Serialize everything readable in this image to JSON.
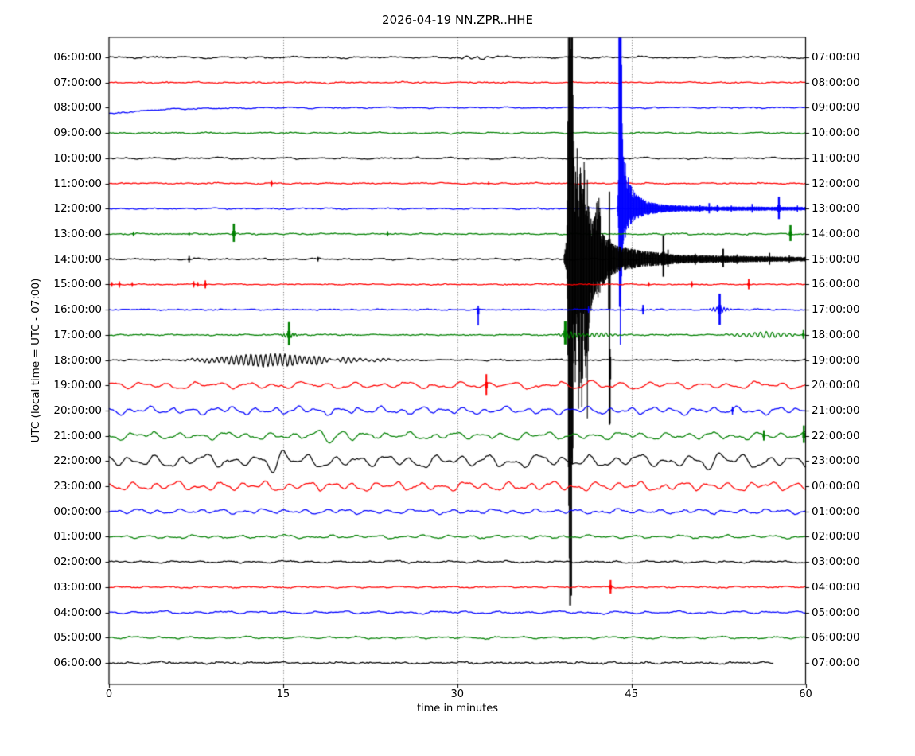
{
  "title": "2026-04-19 NN.ZPR..HHE",
  "axis": {
    "ylabel": "UTC (local time = UTC - 07:00)",
    "xlabel": "time in minutes",
    "xtick_labels": [
      "0",
      "15",
      "30",
      "45",
      "60"
    ]
  },
  "chart_data": {
    "type": "line",
    "kind": "seismogram-dayplot",
    "title": "2026-04-19 NN.ZPR..HHE",
    "date": "2026-04-19",
    "station_id": "NN.ZPR..HHE",
    "xlabel": "time in minutes",
    "ylabel": "UTC (local time = UTC - 07:00)",
    "x_range_minutes": [
      0,
      60
    ],
    "xticks": [
      0,
      15,
      30,
      45,
      60
    ],
    "grid_minutes": [
      15,
      30,
      45
    ],
    "grid_style": "dotted",
    "utc_offset_note": "right axis labels = left UTC label + 1 hour",
    "colors": {
      "black": "#000000",
      "red": "#ff0000",
      "blue": "#0000ff",
      "green": "#008000"
    },
    "rows": [
      {
        "utc": "06:00:00",
        "local": "07:00:00",
        "color": "black",
        "hf": 1.1,
        "wave": 1.1,
        "wl": 3.0,
        "end": 60,
        "features": [
          {
            "t": "burst",
            "m": 31.5,
            "a": 1.6,
            "s": 1.5,
            "p": 0.9
          }
        ]
      },
      {
        "utc": "07:00:00",
        "local": "08:00:00",
        "color": "red",
        "hf": 0.9,
        "wave": 0.7,
        "wl": 2.5,
        "end": 60,
        "features": []
      },
      {
        "utc": "08:00:00",
        "local": "09:00:00",
        "color": "blue",
        "hf": 0.8,
        "wave": 0.7,
        "wl": 2.6,
        "end": 60,
        "features": [
          {
            "t": "decay",
            "a": 8,
            "tau": 4.0
          }
        ]
      },
      {
        "utc": "09:00:00",
        "local": "10:00:00",
        "color": "green",
        "hf": 0.9,
        "wave": 0.8,
        "wl": 2.5,
        "end": 60,
        "features": []
      },
      {
        "utc": "10:00:00",
        "local": "11:00:00",
        "color": "black",
        "hf": 1.0,
        "wave": 1.0,
        "wl": 2.8,
        "end": 60,
        "features": []
      },
      {
        "utc": "11:00:00",
        "local": "12:00:00",
        "color": "red",
        "hf": 0.9,
        "wave": 0.7,
        "wl": 2.5,
        "end": 60,
        "features": [
          {
            "t": "spike",
            "m": 14.0,
            "u": 4,
            "d": 4,
            "w": 1.7
          },
          {
            "t": "spike",
            "m": 32.7,
            "u": 2.5,
            "d": 2.5,
            "w": 1.2
          }
        ]
      },
      {
        "utc": "12:00:00",
        "local": "13:00:00",
        "color": "blue",
        "hf": 0.9,
        "wave": 0.7,
        "wl": 2.5,
        "end": 60,
        "features": [
          {
            "t": "event",
            "env": [
              [
                43.8,
                6,
                5
              ],
              [
                43.88,
                40,
                25
              ],
              [
                43.93,
                400,
                90
              ],
              [
                43.99,
                400,
                160
              ],
              [
                44.04,
                400,
                195
              ],
              [
                44.1,
                300,
                130
              ],
              [
                44.2,
                120,
                70
              ],
              [
                44.35,
                70,
                45
              ],
              [
                44.6,
                45,
                28
              ],
              [
                44.9,
                30,
                20
              ],
              [
                45.3,
                20,
                14
              ],
              [
                45.9,
                13,
                10
              ],
              [
                46.6,
                8,
                7
              ],
              [
                47.5,
                5.5,
                5
              ],
              [
                49,
                4,
                3.5
              ],
              [
                52,
                2.6,
                2.6
              ],
              [
                60,
                2.2,
                2.2
              ]
            ]
          },
          {
            "t": "spike",
            "m": 50.9,
            "u": 5,
            "d": 4,
            "w": 1.5
          },
          {
            "t": "spike",
            "m": 51.7,
            "u": 7,
            "d": 6,
            "w": 1.8
          },
          {
            "t": "spike",
            "m": 52.4,
            "u": 5,
            "d": 4,
            "w": 1.5
          },
          {
            "t": "spike",
            "m": 53.6,
            "u": 4,
            "d": 4,
            "w": 1.4
          },
          {
            "t": "spike",
            "m": 55.4,
            "u": 6,
            "d": 5,
            "w": 1.6
          },
          {
            "t": "spike",
            "m": 57.7,
            "u": 15,
            "d": 13,
            "w": 2.4
          },
          {
            "t": "spike",
            "m": 59.3,
            "u": 4,
            "d": 4,
            "w": 1.4
          }
        ]
      },
      {
        "utc": "13:00:00",
        "local": "14:00:00",
        "color": "green",
        "hf": 1.0,
        "wave": 0.7,
        "wl": 2.2,
        "end": 60,
        "features": [
          {
            "t": "spike",
            "m": 2.1,
            "u": 3,
            "d": 3,
            "w": 1.4
          },
          {
            "t": "spike",
            "m": 6.9,
            "u": 2.5,
            "d": 2.5,
            "w": 1.3
          },
          {
            "t": "spike",
            "m": 10.75,
            "u": 13,
            "d": 10,
            "w": 2.6
          },
          {
            "t": "spike",
            "m": 24.0,
            "u": 3.5,
            "d": 3,
            "w": 1.5
          },
          {
            "t": "spike",
            "m": 58.7,
            "u": 11,
            "d": 9,
            "w": 2.6
          }
        ]
      },
      {
        "utc": "14:00:00",
        "local": "15:00:00",
        "color": "black",
        "hf": 1.1,
        "wave": 0.9,
        "wl": 2.6,
        "end": 60,
        "features": [
          {
            "t": "spike",
            "m": 6.9,
            "u": 4,
            "d": 4,
            "w": 1.8
          },
          {
            "t": "spike",
            "m": 18.0,
            "u": 3,
            "d": 3,
            "w": 1.4
          },
          {
            "t": "event",
            "env": [
              [
                39.2,
                6,
                5
              ],
              [
                39.4,
                25,
                18
              ],
              [
                39.5,
                120,
                70
              ],
              [
                39.56,
                400,
                300
              ],
              [
                39.62,
                400,
                380
              ],
              [
                39.68,
                400,
                435
              ],
              [
                39.83,
                400,
                435
              ],
              [
                39.9,
                400,
                360
              ],
              [
                39.95,
                400,
                300
              ],
              [
                40.0,
                170,
                120
              ],
              [
                40.15,
                90,
                160
              ],
              [
                40.3,
                150,
                80
              ],
              [
                40.45,
                70,
                200
              ],
              [
                40.6,
                120,
                120
              ],
              [
                40.75,
                90,
                265
              ],
              [
                40.9,
                140,
                90
              ],
              [
                41.05,
                70,
                150
              ],
              [
                41.2,
                100,
                200
              ],
              [
                41.4,
                60,
                80
              ],
              [
                41.6,
                45,
                55
              ],
              [
                41.9,
                55,
                40
              ],
              [
                42.15,
                95,
                50
              ],
              [
                42.4,
                35,
                35
              ],
              [
                42.7,
                28,
                30
              ],
              [
                43.0,
                24,
                24
              ],
              [
                43.3,
                20,
                20
              ],
              [
                43.7,
                17,
                17
              ],
              [
                44.2,
                15,
                14
              ],
              [
                45,
                13,
                12
              ],
              [
                46,
                10,
                9
              ],
              [
                47.5,
                8,
                8
              ],
              [
                48.5,
                6,
                6
              ],
              [
                50,
                5,
                5
              ],
              [
                52,
                4.5,
                4.5
              ],
              [
                54,
                4,
                4
              ],
              [
                56,
                3.5,
                3.5
              ],
              [
                58,
                3,
                3
              ],
              [
                60,
                2.8,
                2.8
              ]
            ]
          },
          {
            "t": "spike",
            "m": 43.1,
            "u": 85,
            "d": 208,
            "w": 1.8
          },
          {
            "t": "spike",
            "m": 47.75,
            "u": 30,
            "d": 22,
            "w": 2.2
          },
          {
            "t": "spike",
            "m": 48.15,
            "u": 12,
            "d": 10,
            "w": 1.6
          },
          {
            "t": "spike",
            "m": 50.5,
            "u": 7,
            "d": 7,
            "w": 1.5
          },
          {
            "t": "spike",
            "m": 52.9,
            "u": 13,
            "d": 10,
            "w": 2.0
          },
          {
            "t": "spike",
            "m": 54.1,
            "u": 6,
            "d": 6,
            "w": 1.5
          },
          {
            "t": "spike",
            "m": 56.9,
            "u": 8,
            "d": 7,
            "w": 1.6
          },
          {
            "t": "spike",
            "m": 58.6,
            "u": 5,
            "d": 5,
            "w": 1.4
          }
        ]
      },
      {
        "utc": "15:00:00",
        "local": "16:00:00",
        "color": "red",
        "hf": 0.85,
        "wave": 0.5,
        "wl": 2.0,
        "end": 60,
        "features": [
          {
            "t": "spike",
            "m": 0.25,
            "u": 3,
            "d": 3,
            "w": 1.3
          },
          {
            "t": "spike",
            "m": 0.9,
            "u": 4,
            "d": 4,
            "w": 1.5
          },
          {
            "t": "spike",
            "m": 2.0,
            "u": 3,
            "d": 3,
            "w": 1.3
          },
          {
            "t": "spike",
            "m": 7.3,
            "u": 4,
            "d": 4,
            "w": 1.5
          },
          {
            "t": "spike",
            "m": 7.65,
            "u": 3,
            "d": 3,
            "w": 1.3
          },
          {
            "t": "spike",
            "m": 8.3,
            "u": 5,
            "d": 5,
            "w": 1.8
          },
          {
            "t": "spike",
            "m": 46.5,
            "u": 3,
            "d": 3,
            "w": 1.3
          },
          {
            "t": "spike",
            "m": 50.2,
            "u": 4,
            "d": 4,
            "w": 1.5
          },
          {
            "t": "spike",
            "m": 55.1,
            "u": 7,
            "d": 6,
            "w": 1.8
          }
        ]
      },
      {
        "utc": "16:00:00",
        "local": "17:00:00",
        "color": "blue",
        "hf": 0.85,
        "wave": 0.6,
        "wl": 2.2,
        "end": 60,
        "features": [
          {
            "t": "spike",
            "m": 31.8,
            "u": 5,
            "d": 20,
            "w": 1.6
          },
          {
            "t": "spike",
            "m": 41.3,
            "u": 4,
            "d": 4,
            "w": 1.4
          },
          {
            "t": "spike",
            "m": 46.0,
            "u": 6,
            "d": 6,
            "w": 1.8
          },
          {
            "t": "spike",
            "m": 52.6,
            "u": 20,
            "d": 19,
            "w": 2.6
          },
          {
            "t": "burst",
            "m": 52.6,
            "a": 4,
            "s": 0.5,
            "p": 0.3
          }
        ]
      },
      {
        "utc": "17:00:00",
        "local": "18:00:00",
        "color": "green",
        "hf": 1.0,
        "wave": 0.6,
        "wl": 2.2,
        "end": 60,
        "features": [
          {
            "t": "spike",
            "m": 15.5,
            "u": 16,
            "d": 13,
            "w": 2.6
          },
          {
            "t": "burst",
            "m": 15.5,
            "a": 3,
            "s": 0.45,
            "p": 0.25
          },
          {
            "t": "spike",
            "m": 39.3,
            "u": 17,
            "d": 12,
            "w": 3.2
          },
          {
            "t": "burst",
            "m": 39.7,
            "a": 4,
            "s": 0.6,
            "p": 0.35
          },
          {
            "t": "burst",
            "m": 42.3,
            "a": 2.5,
            "s": 0.8,
            "p": 0.4
          },
          {
            "t": "burst",
            "m": 56.5,
            "a": 3.5,
            "s": 1.6,
            "p": 0.5
          },
          {
            "t": "spike",
            "m": 59.8,
            "u": 6,
            "d": 5,
            "w": 1.6
          }
        ]
      },
      {
        "utc": "18:00:00",
        "local": "19:00:00",
        "color": "black",
        "hf": 0.95,
        "wave": 0.7,
        "wl": 2.4,
        "end": 60,
        "features": [
          {
            "t": "burst",
            "m": 13.8,
            "a": 8,
            "s": 3.4,
            "p": 0.42
          },
          {
            "t": "burst",
            "m": 20.5,
            "a": 2.2,
            "s": 3.0,
            "p": 0.5
          },
          {
            "t": "spike",
            "m": 43.15,
            "u": 14,
            "d": 80,
            "w": 1.7
          }
        ]
      },
      {
        "utc": "19:00:00",
        "local": "20:00:00",
        "color": "red",
        "hf": 1.0,
        "wave": 4.5,
        "wl": 2.3,
        "end": 60,
        "features": [
          {
            "t": "spike",
            "m": 32.5,
            "u": 14,
            "d": 12,
            "w": 2.0
          },
          {
            "t": "burst",
            "m": 40.6,
            "a": 6,
            "s": 1.4,
            "p": 2.8
          }
        ]
      },
      {
        "utc": "20:00:00",
        "local": "21:00:00",
        "color": "blue",
        "hf": 1.0,
        "wave": 5.0,
        "wl": 1.8,
        "end": 60,
        "features": [
          {
            "t": "spike",
            "m": 53.7,
            "u": 5,
            "d": 5,
            "w": 1.5
          }
        ]
      },
      {
        "utc": "21:00:00",
        "local": "22:00:00",
        "color": "green",
        "hf": 1.05,
        "wave": 5.0,
        "wl": 2.0,
        "end": 60,
        "features": [
          {
            "t": "burst",
            "m": 19.6,
            "a": 7,
            "s": 0.9,
            "p": 2.4
          },
          {
            "t": "spike",
            "m": 56.4,
            "u": 7,
            "d": 6,
            "w": 2.0
          },
          {
            "t": "spike",
            "m": 59.85,
            "u": 13,
            "d": 9,
            "w": 2.4
          }
        ]
      },
      {
        "utc": "22:00:00",
        "local": "23:00:00",
        "color": "black",
        "hf": 1.15,
        "wave": 8.5,
        "wl": 2.2,
        "end": 60,
        "features": [
          {
            "t": "burst",
            "m": 14.6,
            "a": 8,
            "s": 0.8,
            "p": 1.9
          },
          {
            "t": "burst",
            "m": 52.3,
            "a": 7,
            "s": 0.9,
            "p": 2.1
          }
        ]
      },
      {
        "utc": "23:00:00",
        "local": "00:00:00",
        "color": "red",
        "hf": 1.05,
        "wave": 6.0,
        "wl": 1.9,
        "end": 60,
        "features": []
      },
      {
        "utc": "00:00:00",
        "local": "01:00:00",
        "color": "blue",
        "hf": 1.0,
        "wave": 3.2,
        "wl": 1.8,
        "end": 60,
        "features": []
      },
      {
        "utc": "01:00:00",
        "local": "02:00:00",
        "color": "green",
        "hf": 0.95,
        "wave": 2.2,
        "wl": 2.0,
        "end": 60,
        "features": []
      },
      {
        "utc": "02:00:00",
        "local": "03:00:00",
        "color": "black",
        "hf": 1.05,
        "wave": 1.3,
        "wl": 2.4,
        "end": 60,
        "features": []
      },
      {
        "utc": "03:00:00",
        "local": "04:00:00",
        "color": "red",
        "hf": 0.9,
        "wave": 0.9,
        "wl": 2.2,
        "end": 60,
        "features": [
          {
            "t": "spike",
            "m": 43.2,
            "u": 9,
            "d": 8,
            "w": 2.2
          }
        ]
      },
      {
        "utc": "04:00:00",
        "local": "05:00:00",
        "color": "blue",
        "hf": 0.9,
        "wave": 1.7,
        "wl": 2.6,
        "end": 60,
        "features": []
      },
      {
        "utc": "05:00:00",
        "local": "06:00:00",
        "color": "green",
        "hf": 0.95,
        "wave": 1.4,
        "wl": 2.4,
        "end": 60,
        "features": []
      },
      {
        "utc": "06:00:00",
        "local": "07:00:00",
        "color": "black",
        "hf": 1.5,
        "wave": 1.1,
        "wl": 2.6,
        "end": 57.2,
        "features": []
      }
    ]
  }
}
